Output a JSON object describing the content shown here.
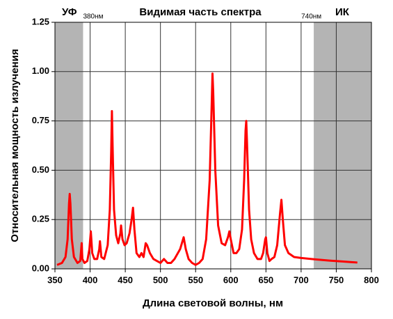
{
  "chart_data": {
    "type": "line",
    "title": "Видимая часть спектра",
    "x_label": "Длина световой волны, нм",
    "y_label": "Относительная мощность излучения",
    "xlim": [
      350,
      800
    ],
    "ylim": [
      0,
      1.25
    ],
    "xticks": [
      350,
      400,
      450,
      500,
      550,
      600,
      650,
      700,
      750,
      800
    ],
    "yticks": [
      {
        "value": 0,
        "label": "0.00"
      },
      {
        "value": 0.25,
        "label": "0.25"
      },
      {
        "value": 0.5,
        "label": "0.50"
      },
      {
        "value": 0.75,
        "label": "0.75"
      },
      {
        "value": 1,
        "label": "1.00"
      },
      {
        "value": 1.25,
        "label": "1.25"
      }
    ],
    "grid": true,
    "bands": [
      {
        "label": "УФ",
        "sublabel": "380нм",
        "range": [
          350,
          390
        ],
        "color": "#b4b4b4"
      },
      {
        "label": "ИК",
        "sublabel": "740нм",
        "range": [
          718,
          800
        ],
        "color": "#b4b4b4"
      }
    ],
    "series": [
      {
        "color": "#ff0000",
        "x": [
          353,
          360,
          365,
          368,
          370,
          371,
          372,
          374,
          377,
          382,
          386,
          388,
          389,
          392,
          396,
          399,
          401,
          403,
          406,
          410,
          413,
          414,
          416,
          420,
          425,
          428,
          430,
          431,
          432,
          434,
          437,
          440,
          443,
          444,
          446,
          449,
          452,
          456,
          459,
          461,
          463,
          466,
          470,
          473,
          476,
          479,
          481,
          485,
          490,
          495,
          500,
          505,
          510,
          515,
          520,
          528,
          533,
          536,
          540,
          545,
          550,
          555,
          560,
          565,
          570,
          573,
          574,
          575,
          578,
          582,
          587,
          592,
          596,
          598,
          600,
          604,
          608,
          612,
          616,
          619,
          621,
          622,
          623,
          626,
          629,
          633,
          638,
          643,
          646,
          649,
          650,
          652,
          655,
          658,
          662,
          666,
          670,
          672,
          674,
          677,
          682,
          690,
          700,
          720,
          740,
          760,
          780
        ],
        "values": [
          0.02,
          0.03,
          0.06,
          0.15,
          0.33,
          0.38,
          0.33,
          0.15,
          0.06,
          0.03,
          0.04,
          0.13,
          0.05,
          0.03,
          0.04,
          0.1,
          0.19,
          0.08,
          0.05,
          0.05,
          0.1,
          0.14,
          0.06,
          0.05,
          0.12,
          0.3,
          0.6,
          0.8,
          0.62,
          0.3,
          0.17,
          0.13,
          0.18,
          0.22,
          0.15,
          0.12,
          0.13,
          0.18,
          0.25,
          0.31,
          0.2,
          0.08,
          0.06,
          0.08,
          0.06,
          0.13,
          0.12,
          0.08,
          0.05,
          0.04,
          0.03,
          0.05,
          0.03,
          0.03,
          0.05,
          0.1,
          0.16,
          0.1,
          0.05,
          0.03,
          0.02,
          0.03,
          0.05,
          0.15,
          0.45,
          0.85,
          0.99,
          0.9,
          0.5,
          0.22,
          0.13,
          0.12,
          0.16,
          0.19,
          0.15,
          0.08,
          0.08,
          0.1,
          0.2,
          0.45,
          0.7,
          0.75,
          0.65,
          0.3,
          0.15,
          0.08,
          0.05,
          0.05,
          0.08,
          0.15,
          0.16,
          0.08,
          0.04,
          0.05,
          0.06,
          0.12,
          0.28,
          0.35,
          0.25,
          0.12,
          0.08,
          0.06,
          0.055,
          0.048,
          0.042,
          0.037,
          0.032
        ]
      }
    ]
  }
}
